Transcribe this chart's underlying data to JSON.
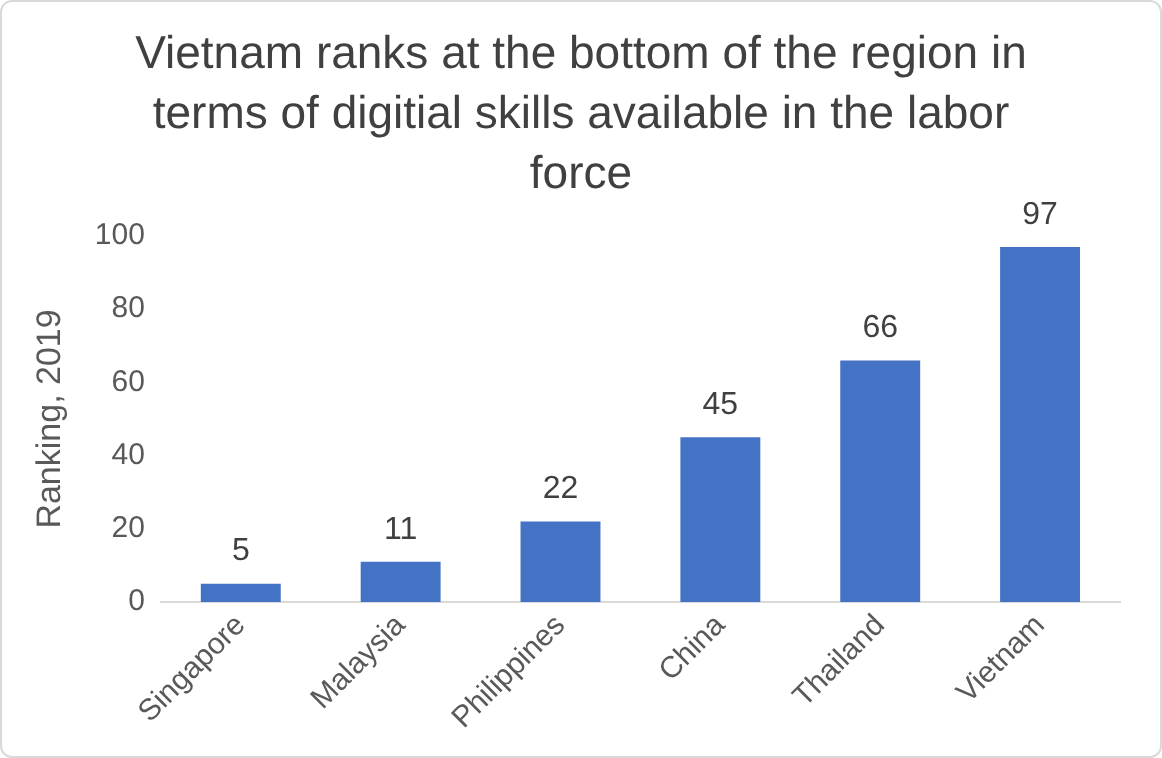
{
  "chart_data": {
    "type": "bar",
    "title": "Vietnam ranks at the bottom of the region in terms of digitial skills available in the labor force",
    "ylabel": "Ranking, 2019",
    "categories": [
      "Singapore",
      "Malaysia",
      "Philippines",
      "China",
      "Thailand",
      "Vietnam"
    ],
    "values": [
      5,
      11,
      22,
      45,
      66,
      97
    ],
    "color": "#4472c4",
    "ylim": [
      0,
      100
    ],
    "yticks": [
      0,
      20,
      40,
      60,
      80,
      100
    ],
    "grid": false,
    "data_labels": true,
    "legend": false
  }
}
